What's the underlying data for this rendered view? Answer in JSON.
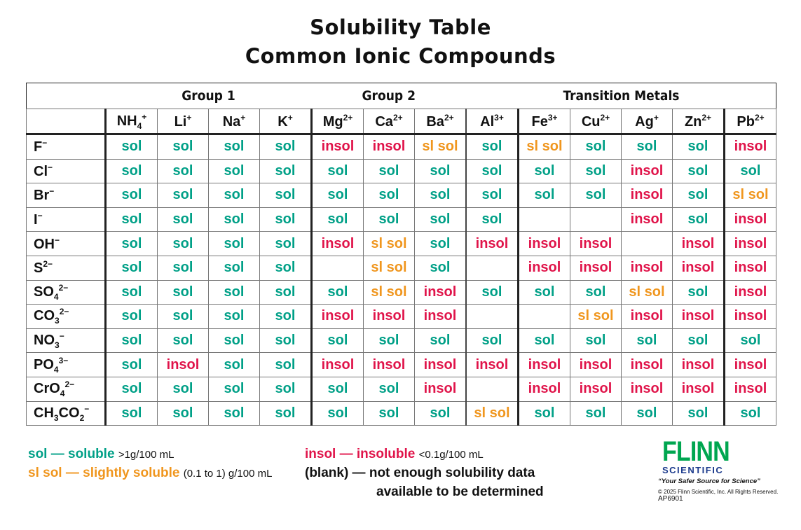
{
  "title": "Solubility Table",
  "subtitle": "Common Ionic Compounds",
  "groups": [
    {
      "label": "Group 1",
      "span": 4
    },
    {
      "label": "Group 2",
      "span": 3
    },
    {
      "label": "",
      "span": 1
    },
    {
      "label": "Transition Metals",
      "span": 4
    },
    {
      "label": "",
      "span": 1
    }
  ],
  "cations": [
    [
      "NH",
      "4",
      "+"
    ],
    [
      "Li",
      "",
      "+"
    ],
    [
      "Na",
      "",
      "+"
    ],
    [
      "K",
      "",
      "+"
    ],
    [
      "Mg",
      "",
      "2+"
    ],
    [
      "Ca",
      "",
      "2+"
    ],
    [
      "Ba",
      "",
      "2+"
    ],
    [
      "Al",
      "",
      "3+"
    ],
    [
      "Fe",
      "",
      "3+"
    ],
    [
      "Cu",
      "",
      "2+"
    ],
    [
      "Ag",
      "",
      "+"
    ],
    [
      "Zn",
      "",
      "2+"
    ],
    [
      "Pb",
      "",
      "2+"
    ]
  ],
  "anions": [
    [
      "F",
      "",
      "−"
    ],
    [
      "Cl",
      "",
      "−"
    ],
    [
      "Br",
      "",
      "−"
    ],
    [
      "I",
      "",
      "−"
    ],
    [
      "OH",
      "",
      "−"
    ],
    [
      "S",
      "",
      "2−"
    ],
    [
      "SO",
      "4",
      "2−"
    ],
    [
      "CO",
      "3",
      "2−"
    ],
    [
      "NO",
      "3",
      "−"
    ],
    [
      "PO",
      "4",
      "3−"
    ],
    [
      "CrO",
      "4",
      "2−"
    ],
    [
      "CH<sub>3</sub>CO",
      "2",
      "−"
    ]
  ],
  "labels": {
    "s": "sol",
    "i": "insol",
    "ss": "sl sol",
    "": ""
  },
  "colors": {
    "sol": "#00a087",
    "insol": "#e0144a",
    "sl_sol": "#f0961e",
    "flinn_green": "#00a650",
    "flinn_blue": "#1b3a8c"
  },
  "rows": [
    [
      "s",
      "s",
      "s",
      "s",
      "i",
      "i",
      "ss",
      "s",
      "ss",
      "s",
      "s",
      "s",
      "i"
    ],
    [
      "s",
      "s",
      "s",
      "s",
      "s",
      "s",
      "s",
      "s",
      "s",
      "s",
      "i",
      "s",
      "s"
    ],
    [
      "s",
      "s",
      "s",
      "s",
      "s",
      "s",
      "s",
      "s",
      "s",
      "s",
      "i",
      "s",
      "ss"
    ],
    [
      "s",
      "s",
      "s",
      "s",
      "s",
      "s",
      "s",
      "s",
      "",
      "",
      "i",
      "s",
      "i"
    ],
    [
      "s",
      "s",
      "s",
      "s",
      "i",
      "ss",
      "s",
      "i",
      "i",
      "i",
      "",
      "i",
      "i"
    ],
    [
      "s",
      "s",
      "s",
      "s",
      "",
      "ss",
      "s",
      "",
      "i",
      "i",
      "i",
      "i",
      "i"
    ],
    [
      "s",
      "s",
      "s",
      "s",
      "s",
      "ss",
      "i",
      "s",
      "s",
      "s",
      "ss",
      "s",
      "i"
    ],
    [
      "s",
      "s",
      "s",
      "s",
      "i",
      "i",
      "i",
      "",
      "",
      "ss",
      "i",
      "i",
      "i"
    ],
    [
      "s",
      "s",
      "s",
      "s",
      "s",
      "s",
      "s",
      "s",
      "s",
      "s",
      "s",
      "s",
      "s"
    ],
    [
      "s",
      "i",
      "s",
      "s",
      "i",
      "i",
      "i",
      "i",
      "i",
      "i",
      "i",
      "i",
      "i"
    ],
    [
      "s",
      "s",
      "s",
      "s",
      "s",
      "s",
      "i",
      "",
      "i",
      "i",
      "i",
      "i",
      "i"
    ],
    [
      "s",
      "s",
      "s",
      "s",
      "s",
      "s",
      "s",
      "ss",
      "s",
      "s",
      "s",
      "s",
      "s"
    ]
  ],
  "legend": {
    "sol": "sol — soluble",
    "sol_note": ">1g/100 mL",
    "slsol": "sl sol — slightly soluble",
    "slsol_note": "(0.1 to 1) g/100 mL",
    "insol": "insol — insoluble",
    "insol_note": "<0.1g/100 mL",
    "blank": "(blank) — not enough solubility data",
    "blank2": "available to be determined"
  },
  "logo": {
    "name": "FLINN",
    "sub": "SCIENTIFIC",
    "tagline": "“Your Safer Source for Science”",
    "copyright": "© 2025 Flinn Scientific, Inc. All Rights Reserved.",
    "code": "AP6901"
  }
}
